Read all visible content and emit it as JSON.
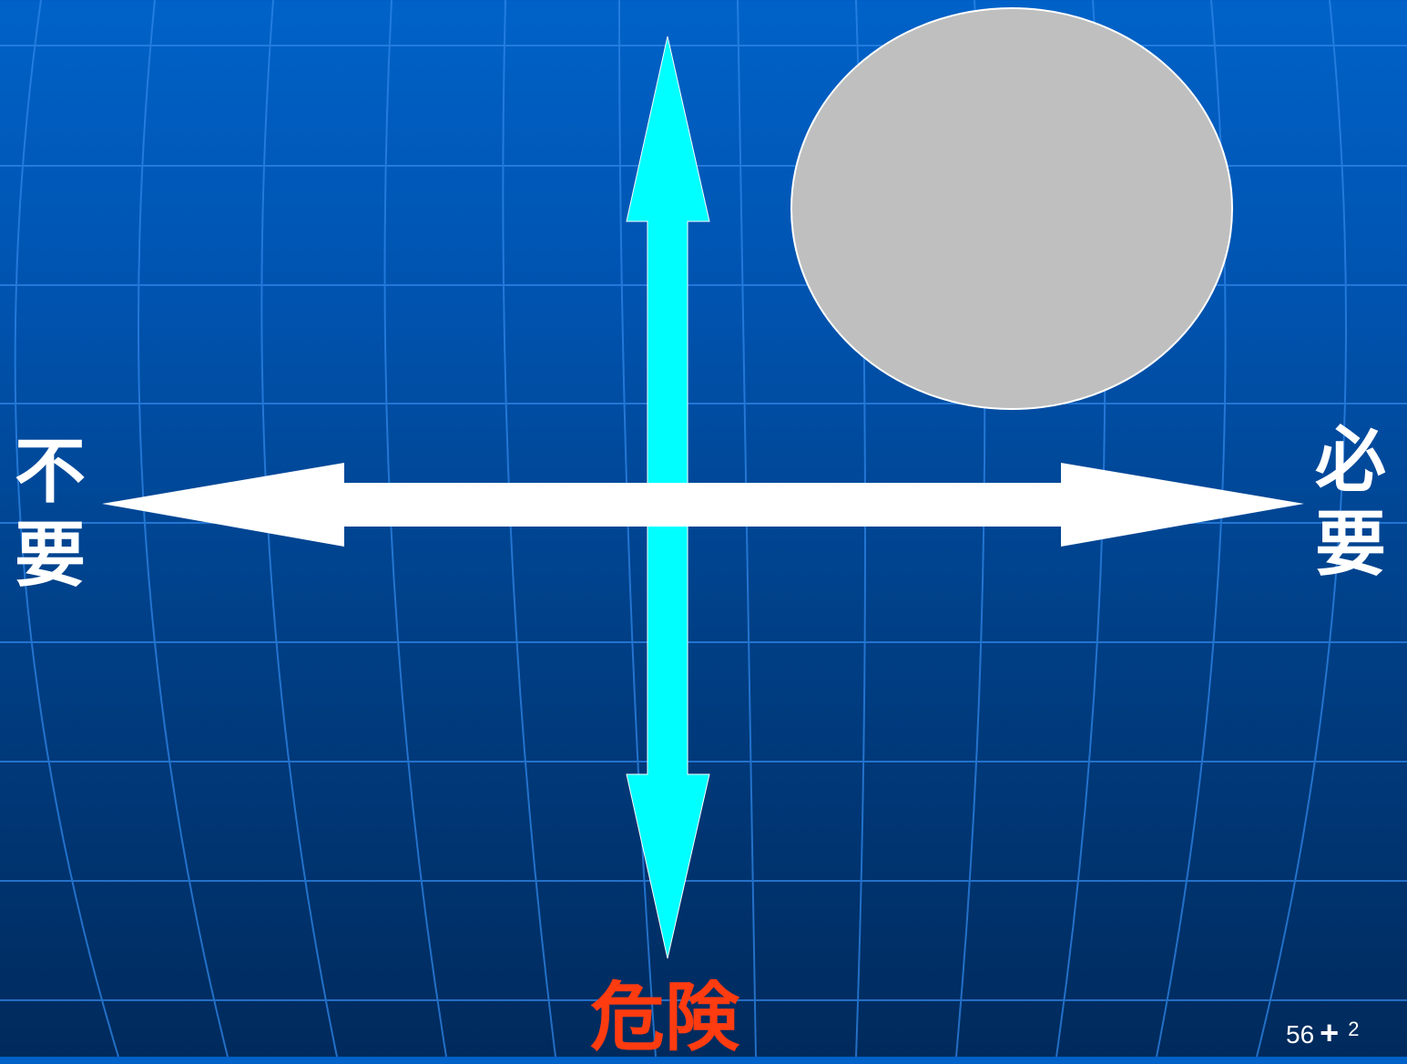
{
  "colors": {
    "background_top": "#0062c8",
    "background_bottom": "#002a5c",
    "grid_lines": "#2f86e8",
    "vertical_arrow": "#00ffff",
    "horizontal_arrow": "#ffffff",
    "ellipse_fill": "#bfbfbf",
    "danger_text": "#ff3b10",
    "axis_labels": "#ffffff"
  },
  "labels": {
    "left": [
      "不",
      "要"
    ],
    "right": [
      "必",
      "要"
    ],
    "bottom": "危険"
  },
  "footer": {
    "number": "56",
    "plus": "+",
    "page": "2"
  }
}
